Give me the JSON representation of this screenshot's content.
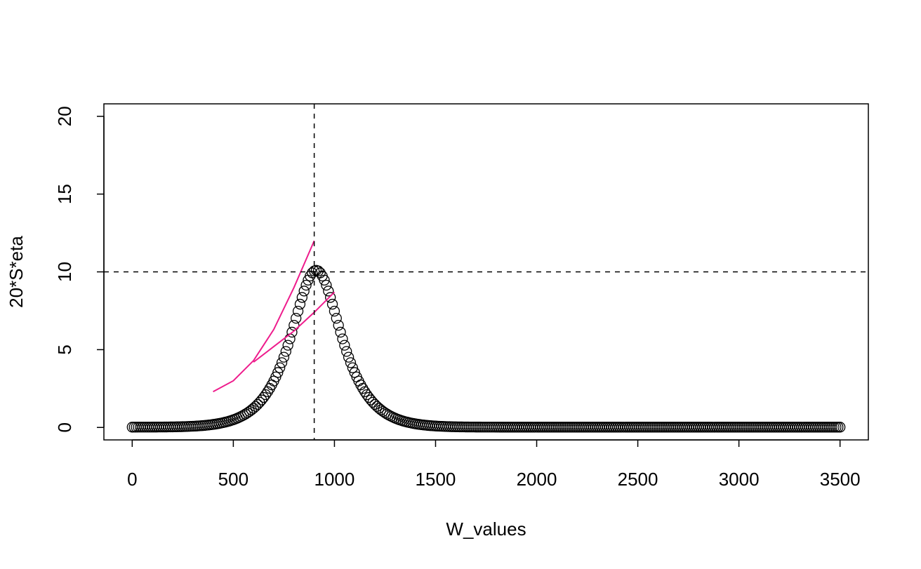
{
  "chart_data": {
    "type": "scatter",
    "title": "",
    "xlabel": "W_values",
    "ylabel": "20*S*eta",
    "xlim": [
      -140,
      3640
    ],
    "ylim": [
      -0.8,
      20.8
    ],
    "xticks": [
      0,
      500,
      1000,
      1500,
      2000,
      2500,
      3000,
      3500
    ],
    "xtick_labels": [
      "0",
      "500",
      "1000",
      "1500",
      "2000",
      "2500",
      "3000",
      "3500"
    ],
    "yticks": [
      0,
      5,
      10,
      15,
      20
    ],
    "ytick_labels": [
      "0",
      "5",
      "10",
      "15",
      "20"
    ],
    "grid": false,
    "legend": "none",
    "scatter_series": {
      "marker": "open-circle",
      "color": "#000000",
      "x_start": 0,
      "x_end": 3500,
      "x_step": 10,
      "peak_x": 910,
      "peak_y": 10.1,
      "width": 170,
      "baseline_y": 0.02
    },
    "line_series": [
      {
        "color": "#ee1c8c",
        "points": [
          [
            400,
            2.3
          ],
          [
            500,
            3.0
          ],
          [
            600,
            4.3
          ],
          [
            700,
            6.3
          ],
          [
            800,
            9.0
          ],
          [
            900,
            12.0
          ]
        ]
      },
      {
        "color": "#ee1c8c",
        "points": [
          [
            600,
            4.2
          ],
          [
            700,
            5.2
          ],
          [
            800,
            6.2
          ],
          [
            900,
            7.4
          ],
          [
            1000,
            8.7
          ]
        ]
      }
    ],
    "reference_lines": [
      {
        "orientation": "vertical",
        "value": 900,
        "style": "dashed",
        "color": "#000000"
      },
      {
        "orientation": "horizontal",
        "value": 10,
        "style": "dashed",
        "color": "#000000"
      }
    ]
  }
}
